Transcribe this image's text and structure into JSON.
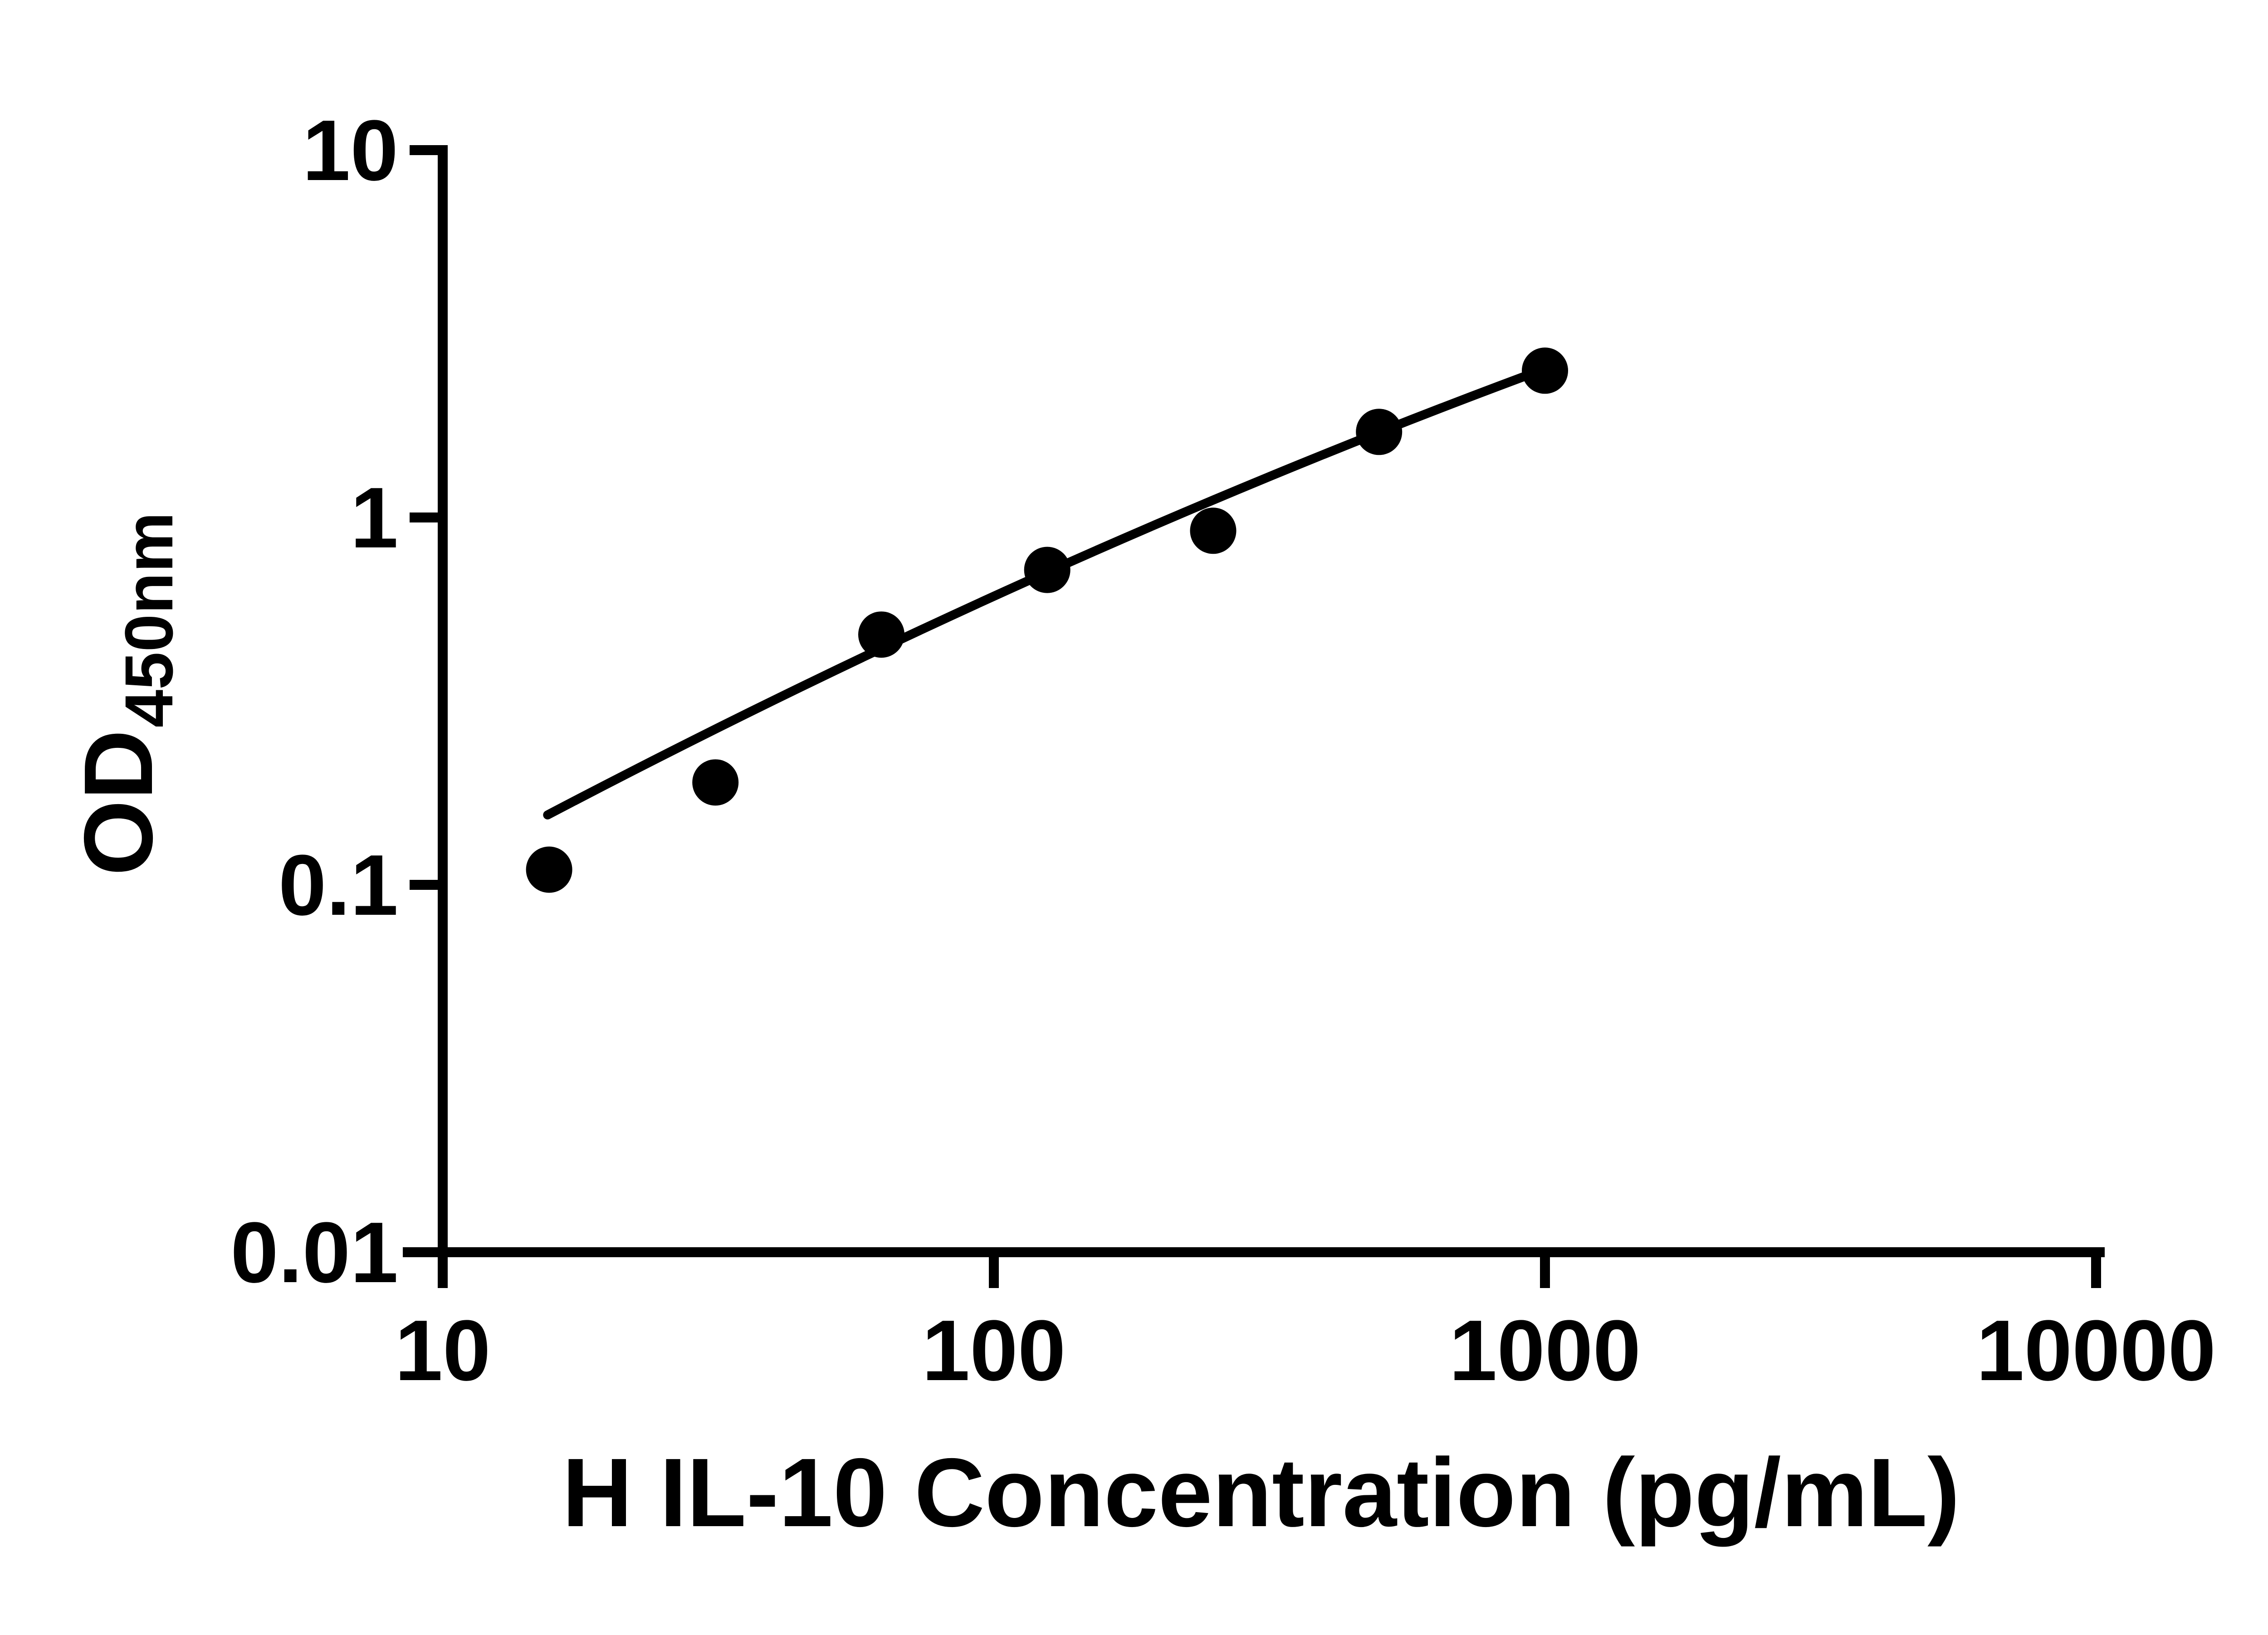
{
  "figure": {
    "background_color": "#ffffff",
    "ink_color": "#000000"
  },
  "chart_data": {
    "type": "scatter",
    "series": [
      {
        "name": "standard-curve-points",
        "x": [
          15.6,
          31.25,
          62.5,
          125,
          250,
          500,
          1000
        ],
        "y": [
          0.11,
          0.19,
          0.48,
          0.72,
          0.92,
          1.71,
          2.51
        ]
      }
    ],
    "fit_curve": {
      "points": [
        {
          "x": 15.5,
          "y": 0.155
        },
        {
          "x": 125,
          "y": 0.71
        },
        {
          "x": 1000,
          "y": 2.54
        }
      ]
    },
    "xlabel": "H IL-10 Concentration (pg/mL)",
    "ylabel_main": "OD",
    "ylabel_sub": "450nm",
    "xscale": "log",
    "yscale": "log",
    "xlim": [
      10,
      10000
    ],
    "ylim": [
      0.01,
      10
    ],
    "x_ticks": [
      {
        "value": 10,
        "label": "10"
      },
      {
        "value": 100,
        "label": "100"
      },
      {
        "value": 1000,
        "label": "1000"
      },
      {
        "value": 10000,
        "label": "10000"
      }
    ],
    "y_ticks": [
      {
        "value": 10,
        "label": "10"
      },
      {
        "value": 1,
        "label": "1"
      },
      {
        "value": 0.1,
        "label": "0.1"
      },
      {
        "value": 0.01,
        "label": "0.01"
      }
    ],
    "grid": false,
    "legend": false,
    "marker": {
      "shape": "circle",
      "color": "#000000",
      "radius_px": 51
    },
    "line_color": "#000000"
  }
}
